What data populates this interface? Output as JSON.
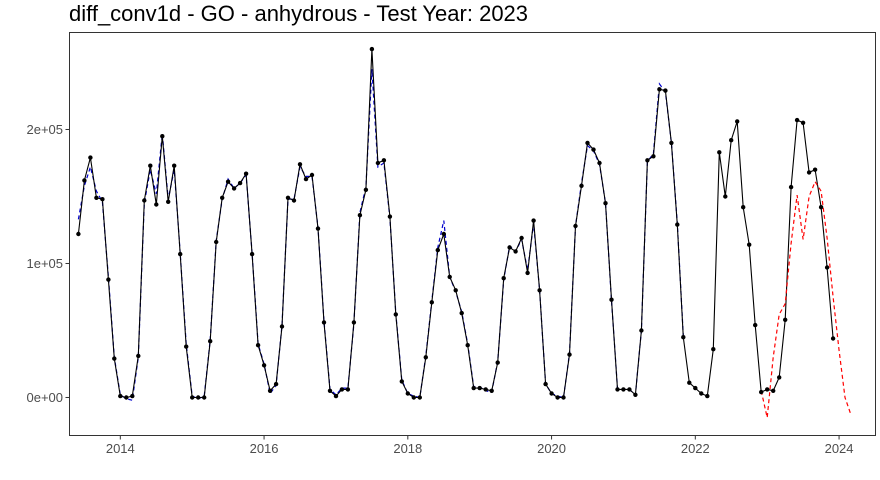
{
  "chart_data": {
    "type": "line",
    "title": "diff_conv1d - GO - anhydrous - Test Year: 2023",
    "xlabel": "",
    "ylabel": "",
    "x_range": [
      2013.3,
      2024.5
    ],
    "y_range": [
      -28000,
      272000
    ],
    "x_ticks": [
      {
        "value": 2014,
        "label": "2014"
      },
      {
        "value": 2016,
        "label": "2016"
      },
      {
        "value": 2018,
        "label": "2018"
      },
      {
        "value": 2020,
        "label": "2020"
      },
      {
        "value": 2022,
        "label": "2022"
      },
      {
        "value": 2024,
        "label": "2024"
      }
    ],
    "y_ticks": [
      {
        "value": 0,
        "label": "0e+00"
      },
      {
        "value": 100000,
        "label": "1e+05"
      },
      {
        "value": 200000,
        "label": "2e+05"
      }
    ],
    "grid": false,
    "legend": "none",
    "x_start": 2013.417,
    "x_step": 0.08333,
    "series": [
      {
        "role": "observed",
        "color": "#000000",
        "style": "solid",
        "markers": true,
        "values": [
          122000,
          162000,
          179000,
          149000,
          148000,
          88000,
          29000,
          1000,
          0,
          1000,
          31000,
          147000,
          173000,
          144000,
          195000,
          146000,
          173000,
          107000,
          38000,
          0,
          0,
          0,
          42000,
          116000,
          149000,
          161000,
          156000,
          160000,
          167000,
          107000,
          39000,
          24000,
          5000,
          10000,
          53000,
          149000,
          147000,
          174000,
          163000,
          166000,
          126000,
          56000,
          5000,
          1000,
          6000,
          6000,
          56000,
          136000,
          155000,
          260000,
          175000,
          177000,
          135000,
          62000,
          12000,
          3000,
          0,
          0,
          30000,
          71000,
          110000,
          122000,
          90000,
          80000,
          63000,
          39000,
          7000,
          7000,
          6000,
          5000,
          26000,
          89000,
          112000,
          109000,
          119000,
          93000,
          132000,
          80000,
          10000,
          3000,
          0,
          0,
          32000,
          128000,
          158000,
          190000,
          185000,
          175000,
          145000,
          73000,
          6000,
          6000,
          6000,
          2000,
          50000,
          177000,
          180000,
          230000,
          229000,
          190000,
          129000,
          45000,
          11000,
          7000,
          3000,
          1000,
          36000,
          183000,
          150000,
          192000,
          206000,
          142000,
          114000,
          54000,
          4000,
          6000,
          5000,
          15000,
          58000,
          157000,
          207000,
          205000,
          168000,
          170000,
          142000,
          97000,
          44000
        ]
      },
      {
        "role": "fitted",
        "color": "#0000cd",
        "style": "dashed",
        "start_index": 0,
        "values": [
          133000,
          158000,
          172000,
          154000,
          146000,
          90000,
          30000,
          2000,
          -1000,
          -2000,
          30000,
          145000,
          170000,
          152000,
          197000,
          148000,
          170000,
          108000,
          40000,
          1000,
          -1000,
          1000,
          43000,
          117000,
          148000,
          163000,
          156000,
          160000,
          166000,
          108000,
          40000,
          25000,
          3000,
          9000,
          54000,
          148000,
          148000,
          172000,
          165000,
          165000,
          127000,
          57000,
          6000,
          2000,
          7000,
          7000,
          55000,
          138000,
          157000,
          245000,
          172000,
          175000,
          134000,
          63000,
          13000,
          3000,
          1000,
          0,
          31000,
          72000,
          112000,
          132000,
          90000,
          79000,
          64000,
          40000,
          8000,
          8000,
          5000,
          4000,
          27000,
          88000,
          113000,
          109000,
          118000,
          95000,
          130000,
          80000,
          10000,
          3000,
          1000,
          0,
          33000,
          128000,
          160000,
          188000,
          184000,
          174000,
          145000,
          72000,
          7000,
          6000,
          6000,
          2000,
          50000,
          176000,
          182000,
          234000,
          228000,
          190000,
          130000,
          46000
        ]
      },
      {
        "role": "forecast",
        "color": "#ff0000",
        "style": "dashed",
        "start_index": 114,
        "values": [
          5000,
          -15000,
          30000,
          62000,
          70000,
          115000,
          151000,
          118000,
          150000,
          161000,
          154000,
          119000,
          75000,
          35000,
          0,
          -13000
        ]
      }
    ]
  }
}
